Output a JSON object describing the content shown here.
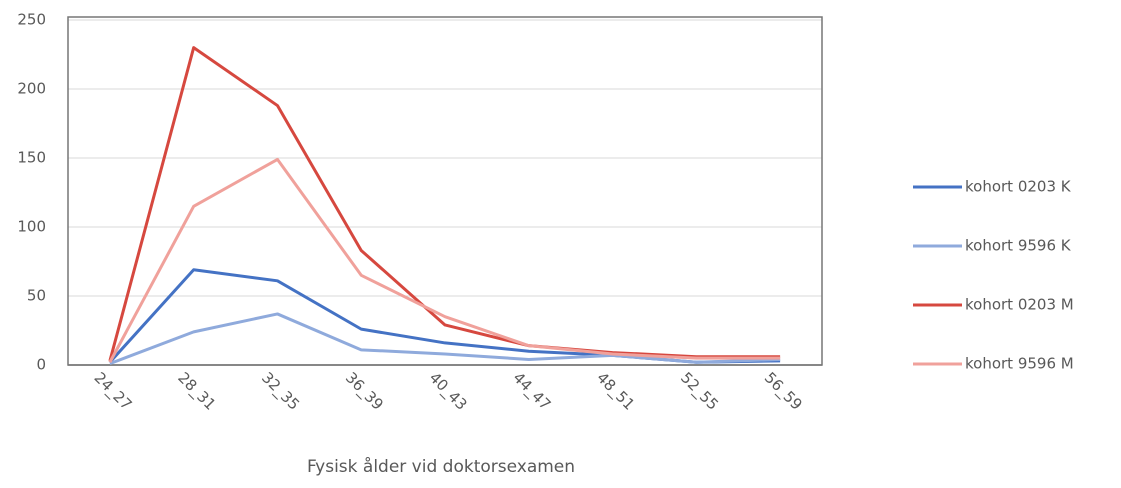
{
  "chart_data": {
    "type": "line",
    "x_label": "Fysisk ålder vid doktorsexamen",
    "categories": [
      "24_27",
      "28_31",
      "32_35",
      "36_39",
      "40_43",
      "44_47",
      "48_51",
      "52_55",
      "56_59"
    ],
    "series": [
      {
        "name": "kohort 0203 K",
        "color": "#4472c4",
        "values": [
          2,
          69,
          61,
          26,
          16,
          10,
          7,
          2,
          3
        ]
      },
      {
        "name": "kohort 9596 K",
        "color": "#8faadc",
        "values": [
          1,
          24,
          37,
          11,
          8,
          4,
          7,
          2,
          4
        ]
      },
      {
        "name": "kohort 0203 M",
        "color": "#d6483f",
        "values": [
          3,
          230,
          188,
          83,
          29,
          14,
          9,
          6,
          6
        ]
      },
      {
        "name": "kohort 9596 M",
        "color": "#f0a19b",
        "values": [
          2,
          115,
          149,
          65,
          35,
          14,
          8,
          5,
          5
        ]
      }
    ],
    "ylim": [
      0,
      250
    ],
    "yticks": [
      0,
      50,
      100,
      150,
      200,
      250
    ],
    "grid": true,
    "legend": "right"
  }
}
